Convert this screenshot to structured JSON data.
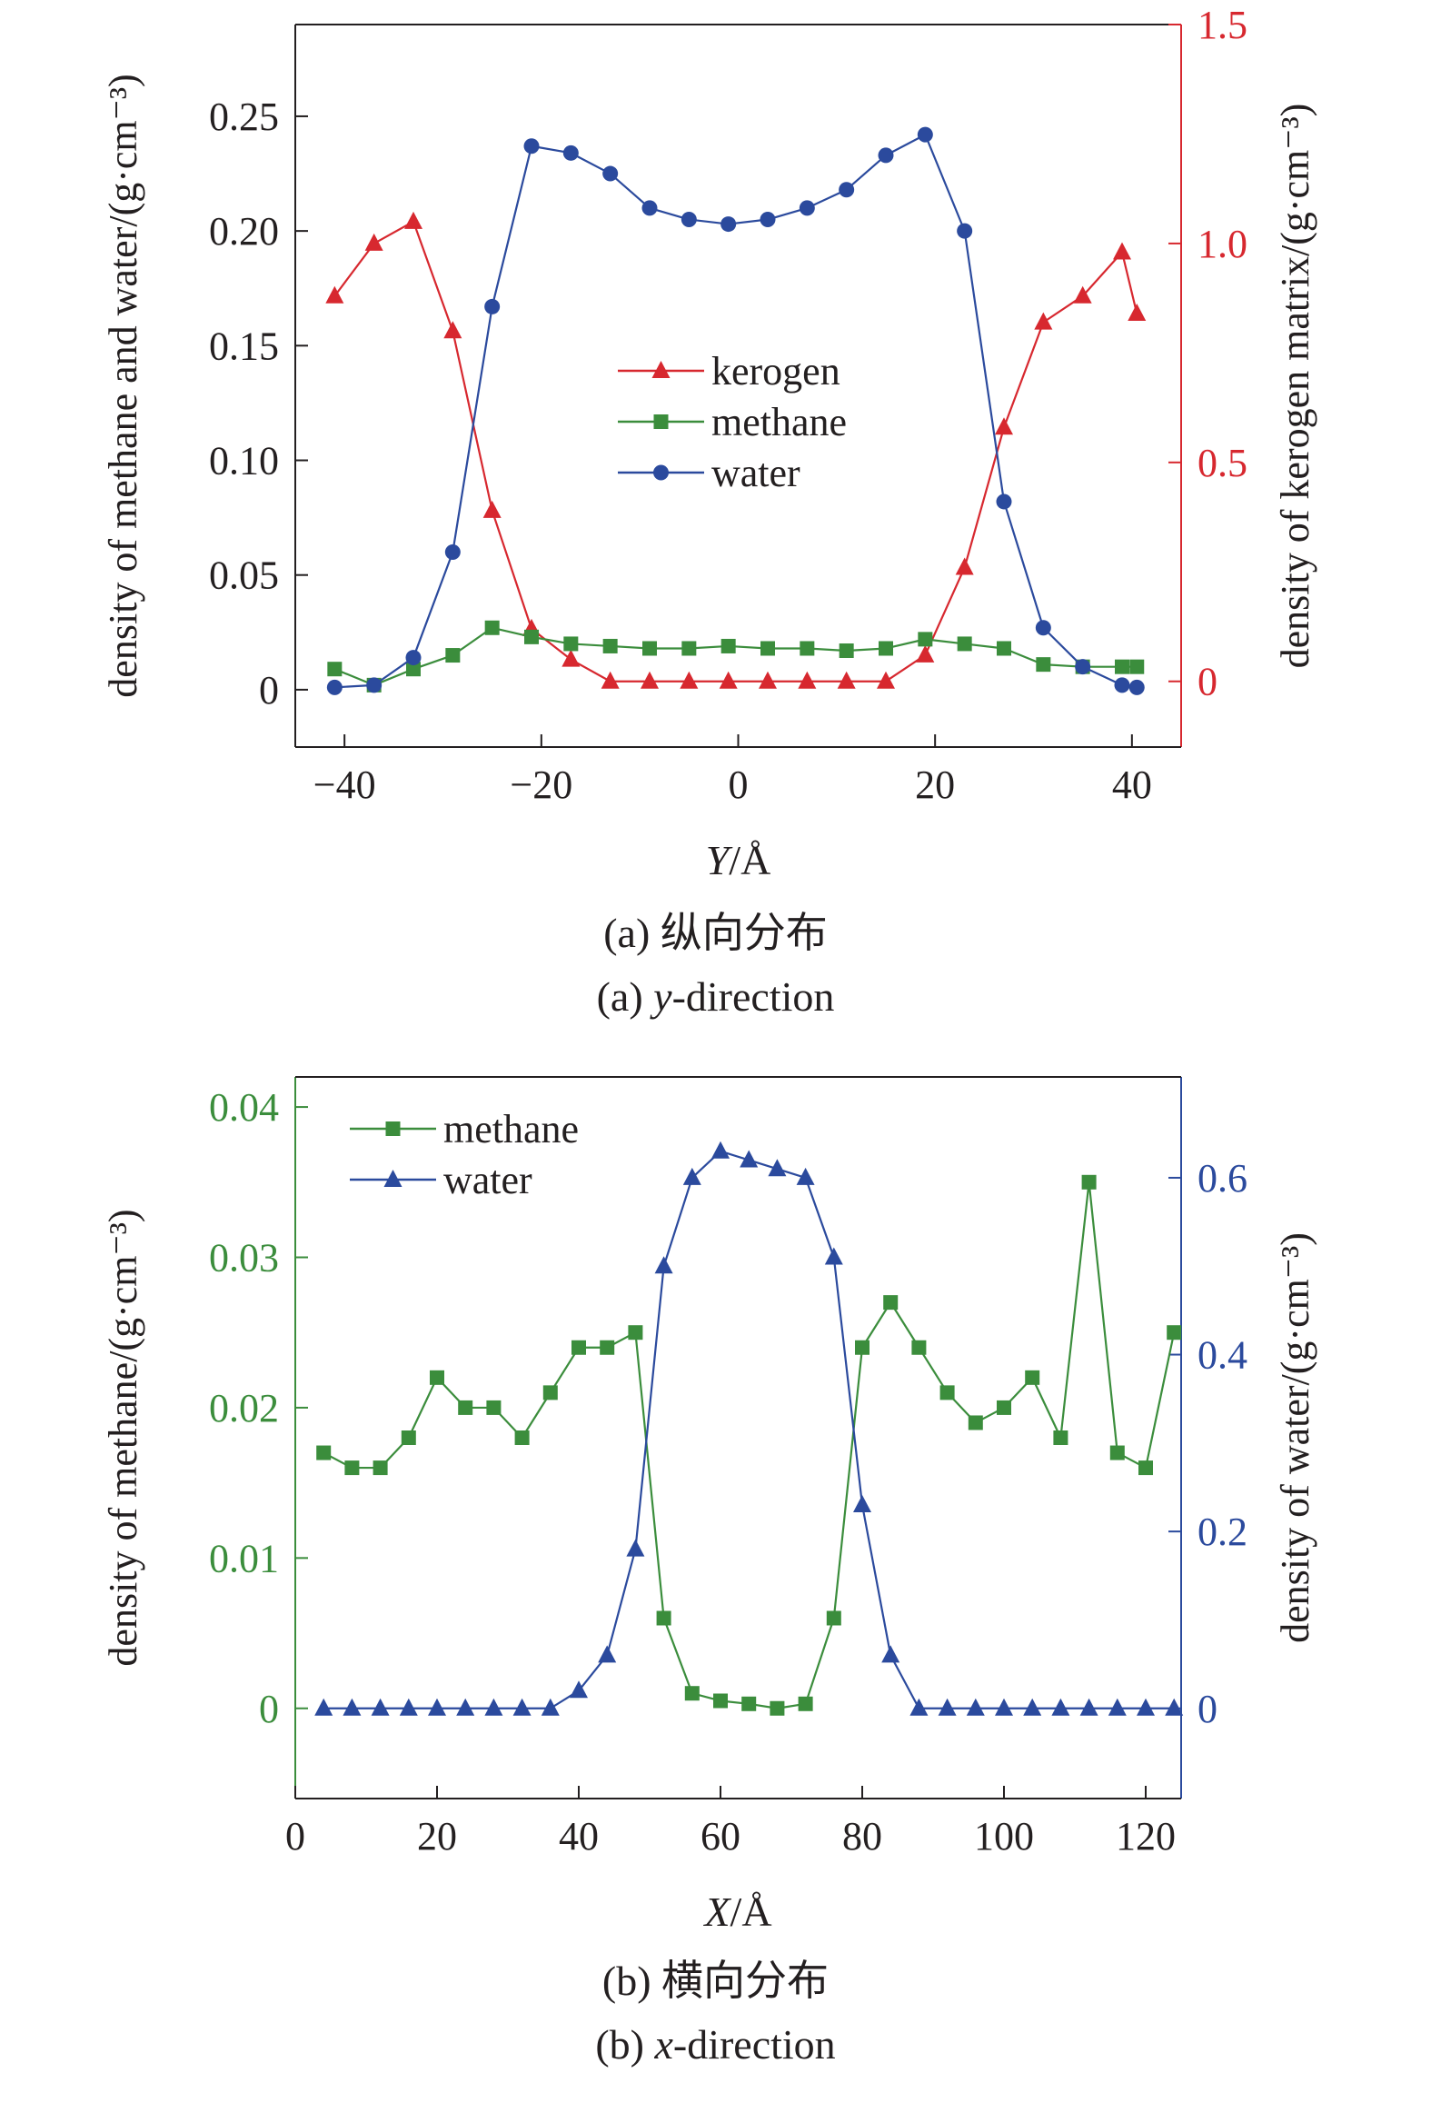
{
  "chart_data": [
    {
      "type": "line",
      "xlabel": "Y/Å",
      "xlabel_var": "Y",
      "xlabel_unit": "/Å",
      "ylabel": "density of methane and water/(g·cm⁻³)",
      "ylabel_right": "density of kerogen matrix/(g·cm⁻³)",
      "xlim": [
        -45,
        45
      ],
      "ylim": [
        -0.025,
        0.29
      ],
      "ylim_right": [
        -0.15,
        1.5
      ],
      "xticks": [
        -40,
        -20,
        0,
        20,
        40
      ],
      "yticks": [
        0,
        0.05,
        0.1,
        0.15,
        0.2,
        0.25
      ],
      "yticks_right": [
        0,
        0.5,
        1.0,
        1.5
      ],
      "caption_cn": "(a) 纵向分布",
      "caption_prefix": "(a) ",
      "caption_var": "y",
      "caption_suffix": "-direction",
      "legend_position": "center",
      "colors": {
        "kerogen": "#d7282f",
        "methane": "#3b8d3c",
        "water": "#2b4a9d",
        "axis_left": "#231f20",
        "axis_right": "#d7282f"
      },
      "series": [
        {
          "name": "kerogen",
          "axis": "right",
          "marker": "triangle",
          "x": [
            -41,
            -37,
            -33,
            -29,
            -25,
            -21,
            -17,
            -13,
            -9,
            -5,
            -1,
            3,
            7,
            11,
            15,
            19,
            23,
            27,
            31,
            35,
            39,
            40.5
          ],
          "y": [
            0.88,
            1.0,
            1.05,
            0.8,
            0.39,
            0.12,
            0.05,
            0,
            0,
            0,
            0,
            0,
            0,
            0,
            0,
            0.06,
            0.26,
            0.58,
            0.82,
            0.88,
            0.98,
            0.84
          ]
        },
        {
          "name": "methane",
          "axis": "left",
          "marker": "square",
          "x": [
            -41,
            -37,
            -33,
            -29,
            -25,
            -21,
            -17,
            -13,
            -9,
            -5,
            -1,
            3,
            7,
            11,
            15,
            19,
            23,
            27,
            31,
            35,
            39,
            40.5
          ],
          "y": [
            0.009,
            0.002,
            0.009,
            0.015,
            0.027,
            0.023,
            0.02,
            0.019,
            0.018,
            0.018,
            0.019,
            0.018,
            0.018,
            0.017,
            0.018,
            0.022,
            0.02,
            0.018,
            0.011,
            0.01,
            0.01,
            0.01
          ]
        },
        {
          "name": "water",
          "axis": "left",
          "marker": "circle",
          "x": [
            -41,
            -37,
            -33,
            -29,
            -25,
            -21,
            -17,
            -13,
            -9,
            -5,
            -1,
            3,
            7,
            11,
            15,
            19,
            23,
            27,
            31,
            35,
            39,
            40.5
          ],
          "y": [
            0.001,
            0.002,
            0.014,
            0.06,
            0.167,
            0.237,
            0.234,
            0.225,
            0.21,
            0.205,
            0.203,
            0.205,
            0.21,
            0.218,
            0.233,
            0.242,
            0.2,
            0.082,
            0.027,
            0.01,
            0.002,
            0.001
          ]
        }
      ]
    },
    {
      "type": "line",
      "xlabel": "X/Å",
      "xlabel_var": "X",
      "xlabel_unit": "/Å",
      "ylabel": "density of methane/(g·cm⁻³)",
      "ylabel_right": "density of water/(g·cm⁻³)",
      "xlim": [
        0,
        125
      ],
      "ylim": [
        -0.006,
        0.042
      ],
      "ylim_right": [
        -0.102,
        0.714
      ],
      "xticks": [
        0,
        20,
        40,
        60,
        80,
        100,
        120
      ],
      "yticks": [
        0,
        0.01,
        0.02,
        0.03,
        0.04
      ],
      "yticks_right": [
        0,
        0.2,
        0.4,
        0.6
      ],
      "caption_cn": "(b) 横向分布",
      "caption_prefix": "(b)  ",
      "caption_var": "x",
      "caption_suffix": "-direction",
      "legend_position": "top-left",
      "colors": {
        "methane": "#3b8d3c",
        "water": "#2b4a9d",
        "axis_left": "#3b8d3c",
        "axis_right": "#2b4a9d"
      },
      "series": [
        {
          "name": "methane",
          "axis": "left",
          "marker": "square",
          "x": [
            4,
            8,
            12,
            16,
            20,
            24,
            28,
            32,
            36,
            40,
            44,
            48,
            52,
            56,
            60,
            64,
            68,
            72,
            76,
            80,
            84,
            88,
            92,
            96,
            100,
            104,
            108,
            112,
            116,
            120,
            124
          ],
          "y": [
            0.017,
            0.016,
            0.016,
            0.018,
            0.022,
            0.02,
            0.02,
            0.018,
            0.021,
            0.024,
            0.024,
            0.025,
            0.006,
            0.001,
            0.0005,
            0.0003,
            0,
            0.0003,
            0.006,
            0.024,
            0.027,
            0.024,
            0.021,
            0.019,
            0.02,
            0.022,
            0.018,
            0.035,
            0.017,
            0.016,
            0.025
          ]
        },
        {
          "name": "water",
          "axis": "right",
          "marker": "triangle",
          "x": [
            4,
            8,
            12,
            16,
            20,
            24,
            28,
            32,
            36,
            40,
            44,
            48,
            52,
            56,
            60,
            64,
            68,
            72,
            76,
            80,
            84,
            88,
            92,
            96,
            100,
            104,
            108,
            112,
            116,
            120,
            124
          ],
          "y": [
            0,
            0,
            0,
            0,
            0,
            0,
            0,
            0,
            0,
            0.02,
            0.06,
            0.18,
            0.5,
            0.6,
            0.63,
            0.62,
            0.61,
            0.6,
            0.51,
            0.23,
            0.06,
            0,
            0,
            0,
            0,
            0,
            0,
            0,
            0,
            0,
            0
          ]
        }
      ]
    }
  ]
}
